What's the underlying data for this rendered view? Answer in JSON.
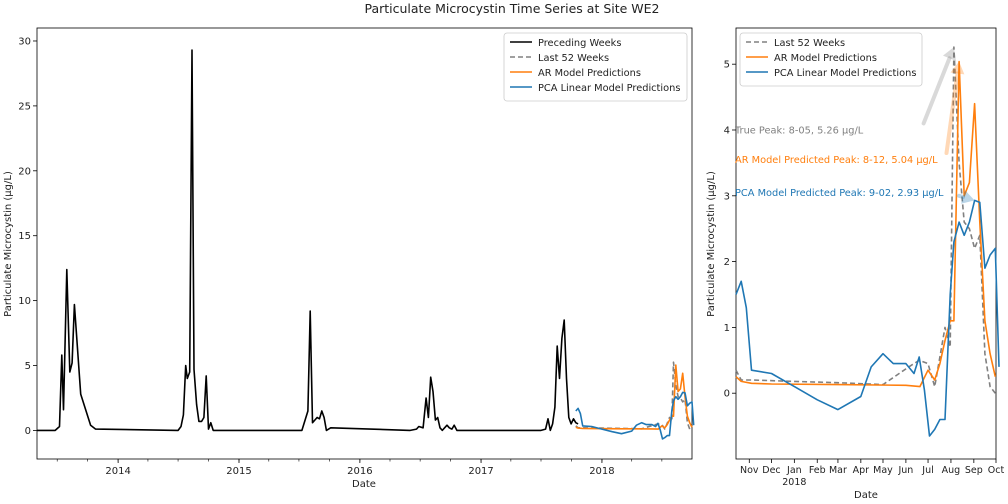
{
  "figure": {
    "title": "Particulate Microcystin Time Series at Site WE2"
  },
  "colors": {
    "preceding": "#000000",
    "last52": "#808080",
    "ar": "#ff7f0e",
    "pca": "#1f77b4"
  },
  "chart_data": [
    {
      "type": "line",
      "xlabel": "Date",
      "ylabel": "Particulate Microcystin (µg/L)",
      "x_ticks": [
        "2014",
        "2015",
        "2016",
        "2017",
        "2018"
      ],
      "y_ticks": [
        "0",
        "5",
        "10",
        "15",
        "20",
        "25",
        "30"
      ],
      "ylim": [
        -2.2,
        31
      ],
      "xlim": [
        "2013-05-01",
        "2018-09-30"
      ],
      "legend": {
        "placement": "top-right",
        "entries": [
          "Preceding Weeks",
          "Last 52 Weeks",
          "AR Model Predictions",
          "PCA Linear Model Predictions"
        ]
      },
      "series": [
        {
          "name": "Preceding Weeks",
          "points": [
            [
              "2013-05-01",
              0
            ],
            [
              "2013-06-25",
              0
            ],
            [
              "2013-07-08",
              0.3
            ],
            [
              "2013-07-15",
              5.8
            ],
            [
              "2013-07-20",
              1.6
            ],
            [
              "2013-07-30",
              12.4
            ],
            [
              "2013-08-08",
              4.5
            ],
            [
              "2013-08-15",
              5.2
            ],
            [
              "2013-08-22",
              9.7
            ],
            [
              "2013-09-10",
              2.8
            ],
            [
              "2013-10-10",
              0.4
            ],
            [
              "2013-10-25",
              0.1
            ],
            [
              "2014-07-01",
              0
            ],
            [
              "2014-07-10",
              0.3
            ],
            [
              "2014-07-17",
              1.2
            ],
            [
              "2014-07-24",
              5.0
            ],
            [
              "2014-07-29",
              4.0
            ],
            [
              "2014-08-05",
              4.5
            ],
            [
              "2014-08-12",
              29.3
            ],
            [
              "2014-08-18",
              4.7
            ],
            [
              "2014-08-26",
              2.0
            ],
            [
              "2014-09-02",
              0.7
            ],
            [
              "2014-09-10",
              0.7
            ],
            [
              "2014-09-17",
              1.0
            ],
            [
              "2014-09-24",
              4.2
            ],
            [
              "2014-10-01",
              0.1
            ],
            [
              "2014-10-08",
              0.6
            ],
            [
              "2014-10-15",
              0
            ],
            [
              "2015-07-10",
              0
            ],
            [
              "2015-07-28",
              1.5
            ],
            [
              "2015-08-04",
              9.2
            ],
            [
              "2015-08-11",
              0.6
            ],
            [
              "2015-08-18",
              0.8
            ],
            [
              "2015-08-25",
              1.0
            ],
            [
              "2015-09-01",
              0.9
            ],
            [
              "2015-09-08",
              1.5
            ],
            [
              "2015-09-15",
              1.0
            ],
            [
              "2015-09-22",
              0
            ],
            [
              "2015-10-05",
              0.2
            ],
            [
              "2016-06-01",
              0
            ],
            [
              "2016-06-20",
              0.1
            ],
            [
              "2016-06-27",
              0.3
            ],
            [
              "2016-07-10",
              0.2
            ],
            [
              "2016-07-19",
              2.5
            ],
            [
              "2016-07-26",
              1.0
            ],
            [
              "2016-08-02",
              4.1
            ],
            [
              "2016-08-09",
              3.0
            ],
            [
              "2016-08-16",
              0.8
            ],
            [
              "2016-08-23",
              1.0
            ],
            [
              "2016-08-30",
              0.2
            ],
            [
              "2016-09-06",
              0
            ],
            [
              "2016-09-13",
              0.2
            ],
            [
              "2016-09-20",
              0.4
            ],
            [
              "2016-09-27",
              0.2
            ],
            [
              "2016-10-05",
              0.1
            ],
            [
              "2016-10-12",
              0.4
            ],
            [
              "2016-10-20",
              0
            ],
            [
              "2017-07-01",
              0
            ],
            [
              "2017-07-15",
              0.1
            ],
            [
              "2017-07-22",
              0.9
            ],
            [
              "2017-07-29",
              0
            ],
            [
              "2017-08-05",
              0.5
            ],
            [
              "2017-08-12",
              1.8
            ],
            [
              "2017-08-19",
              6.5
            ],
            [
              "2017-08-26",
              4.0
            ],
            [
              "2017-09-02",
              7.1
            ],
            [
              "2017-09-09",
              8.5
            ],
            [
              "2017-09-16",
              4.0
            ],
            [
              "2017-09-23",
              1.0
            ],
            [
              "2017-09-30",
              0.5
            ],
            [
              "2017-10-07",
              0.9
            ],
            [
              "2017-10-14",
              0.6
            ],
            [
              "2017-10-21",
              0.5
            ]
          ]
        },
        {
          "name": "Last 52 Weeks",
          "points": [
            [
              "2017-10-14",
              0.35
            ],
            [
              "2017-10-21",
              0.2
            ],
            [
              "2017-11-04",
              0.2
            ],
            [
              "2018-01-01",
              0.18
            ],
            [
              "2018-03-01",
              0.16
            ],
            [
              "2018-05-01",
              0.13
            ],
            [
              "2018-06-05",
              0.4
            ],
            [
              "2018-06-19",
              0.5
            ],
            [
              "2018-07-01",
              0.45
            ],
            [
              "2018-07-10",
              0.1
            ],
            [
              "2018-07-17",
              0.55
            ],
            [
              "2018-07-24",
              1.0
            ],
            [
              "2018-07-31",
              0.7
            ],
            [
              "2018-08-05",
              5.26
            ],
            [
              "2018-08-12",
              3.5
            ],
            [
              "2018-08-19",
              2.6
            ],
            [
              "2018-08-26",
              2.5
            ],
            [
              "2018-09-02",
              2.2
            ],
            [
              "2018-09-09",
              2.4
            ],
            [
              "2018-09-16",
              0.6
            ],
            [
              "2018-09-23",
              0.1
            ],
            [
              "2018-09-30",
              0
            ]
          ]
        },
        {
          "name": "AR Model Predictions",
          "points": [
            [
              "2017-10-14",
              0.25
            ],
            [
              "2017-10-21",
              0.18
            ],
            [
              "2017-11-04",
              0.15
            ],
            [
              "2017-12-01",
              0.14
            ],
            [
              "2018-03-01",
              0.13
            ],
            [
              "2018-06-01",
              0.12
            ],
            [
              "2018-06-20",
              0.1
            ],
            [
              "2018-07-01",
              0.35
            ],
            [
              "2018-07-10",
              0.2
            ],
            [
              "2018-07-17",
              0.45
            ],
            [
              "2018-07-24",
              0.8
            ],
            [
              "2018-07-31",
              1.1
            ],
            [
              "2018-08-05",
              1.1
            ],
            [
              "2018-08-12",
              5.04
            ],
            [
              "2018-08-19",
              3.0
            ],
            [
              "2018-08-26",
              3.2
            ],
            [
              "2018-09-02",
              4.4
            ],
            [
              "2018-09-09",
              2.6
            ],
            [
              "2018-09-16",
              1.1
            ],
            [
              "2018-09-23",
              0.6
            ],
            [
              "2018-09-30",
              0.25
            ]
          ]
        },
        {
          "name": "PCA Linear Model Predictions",
          "points": [
            [
              "2017-10-14",
              1.5
            ],
            [
              "2017-10-21",
              1.7
            ],
            [
              "2017-10-28",
              1.3
            ],
            [
              "2017-11-04",
              0.35
            ],
            [
              "2017-12-01",
              0.3
            ],
            [
              "2018-01-01",
              0.1
            ],
            [
              "2018-02-01",
              -0.1
            ],
            [
              "2018-03-01",
              -0.25
            ],
            [
              "2018-04-01",
              -0.05
            ],
            [
              "2018-04-15",
              0.4
            ],
            [
              "2018-05-01",
              0.6
            ],
            [
              "2018-05-15",
              0.45
            ],
            [
              "2018-06-01",
              0.45
            ],
            [
              "2018-06-12",
              0.3
            ],
            [
              "2018-06-19",
              0.55
            ],
            [
              "2018-06-26",
              0.05
            ],
            [
              "2018-07-03",
              -0.65
            ],
            [
              "2018-07-10",
              -0.55
            ],
            [
              "2018-07-17",
              -0.4
            ],
            [
              "2018-07-24",
              -0.4
            ],
            [
              "2018-07-31",
              1.5
            ],
            [
              "2018-08-05",
              2.3
            ],
            [
              "2018-08-12",
              2.6
            ],
            [
              "2018-08-19",
              2.4
            ],
            [
              "2018-08-26",
              2.6
            ],
            [
              "2018-09-02",
              2.93
            ],
            [
              "2018-09-09",
              2.9
            ],
            [
              "2018-09-16",
              1.9
            ],
            [
              "2018-09-23",
              2.1
            ],
            [
              "2018-09-30",
              2.2
            ],
            [
              "2018-10-05",
              0.4
            ]
          ]
        }
      ]
    },
    {
      "type": "line",
      "xlabel": "Date",
      "ylabel": "Particulate Microcystin (µg/L)",
      "x_ticks": [
        "Nov",
        "Dec",
        "Jan",
        "Feb",
        "Mar",
        "Apr",
        "May",
        "Jun",
        "Jul",
        "Aug",
        "Sep",
        "Oct"
      ],
      "x_year_label": "2018",
      "y_ticks": [
        "0",
        "1",
        "2",
        "3",
        "4",
        "5"
      ],
      "ylim": [
        -1.0,
        5.55
      ],
      "xlim": [
        "2017-10-14",
        "2018-10-01"
      ],
      "legend": {
        "placement": "top-left",
        "entries": [
          "Last 52 Weeks",
          "AR Model Predictions",
          "PCA Linear Model Predictions"
        ]
      },
      "annotations": [
        {
          "text": "True Peak: 8-05, 5.26 µg/L",
          "series": "Last 52 Weeks",
          "x": "2018-08-05",
          "y": 5.26,
          "text_y": 4.0,
          "arrow_from": [
            "2018-06-25",
            4.1
          ]
        },
        {
          "text": "AR Model Predicted Peak: 8-12, 5.04 µg/L",
          "series": "AR Model Predictions",
          "x": "2018-08-12",
          "y": 5.04,
          "text_y": 3.55,
          "arrow_from": [
            "2018-07-26",
            3.65
          ]
        },
        {
          "text": "PCA Model Predicted Peak: 9-02, 2.93 µg/L",
          "series": "PCA Linear Model Predictions",
          "x": "2018-09-02",
          "y": 2.93,
          "text_y": 3.05,
          "arrow_from": [
            "2018-08-12",
            3.0
          ]
        }
      ]
    }
  ]
}
